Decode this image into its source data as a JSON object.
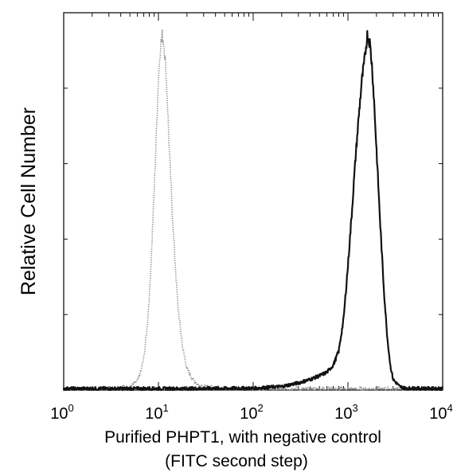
{
  "chart_data": {
    "type": "line",
    "title": "",
    "xlabel": "Purified PHPT1, with negative control",
    "xlabel_line2": "(FITC second step)",
    "ylabel": "Relative Cell Number",
    "x_scale": "log",
    "xlim": [
      1,
      10000
    ],
    "ylim": [
      0,
      100
    ],
    "x_ticks": [
      {
        "base": "10",
        "exp": "0",
        "value": 1
      },
      {
        "base": "10",
        "exp": "1",
        "value": 10
      },
      {
        "base": "10",
        "exp": "2",
        "value": 100
      },
      {
        "base": "10",
        "exp": "3",
        "value": 1000
      },
      {
        "base": "10",
        "exp": "4",
        "value": 10000
      }
    ],
    "y_ticks_labeled": false,
    "grid": false,
    "legend": "none",
    "series": [
      {
        "style": "dotted",
        "color": "#8a8a8a",
        "x": [
          1,
          3,
          5,
          6,
          6.5,
          7,
          7.5,
          8,
          8.5,
          9,
          9.5,
          10,
          10.5,
          11,
          11.5,
          12,
          12.5,
          13,
          14,
          15,
          16,
          18,
          20,
          23,
          26,
          30,
          40,
          60,
          100,
          1000,
          10000
        ],
        "y": [
          0.4,
          0.5,
          0.9,
          2.5,
          5,
          9,
          16,
          26,
          40,
          56,
          72,
          88,
          97,
          100,
          97,
          90,
          80,
          68,
          50,
          36,
          24,
          12,
          6,
          3,
          1.6,
          1,
          0.6,
          0.4,
          0.3,
          0.3,
          0.3
        ]
      },
      {
        "style": "solid",
        "color": "#111111",
        "x": [
          1,
          10,
          100,
          200,
          300,
          400,
          500,
          600,
          700,
          800,
          900,
          1000,
          1100,
          1200,
          1300,
          1400,
          1500,
          1600,
          1700,
          1800,
          1900,
          2000,
          2200,
          2400,
          2600,
          2800,
          3000,
          3500,
          4000,
          10000
        ],
        "y": [
          0.4,
          0.4,
          0.5,
          1,
          2,
          3,
          4,
          5,
          7,
          11,
          20,
          35,
          50,
          65,
          77,
          87,
          93,
          100,
          98,
          91,
          80,
          68,
          46,
          28,
          15,
          7,
          3,
          1,
          0.5,
          0.4
        ]
      }
    ]
  }
}
